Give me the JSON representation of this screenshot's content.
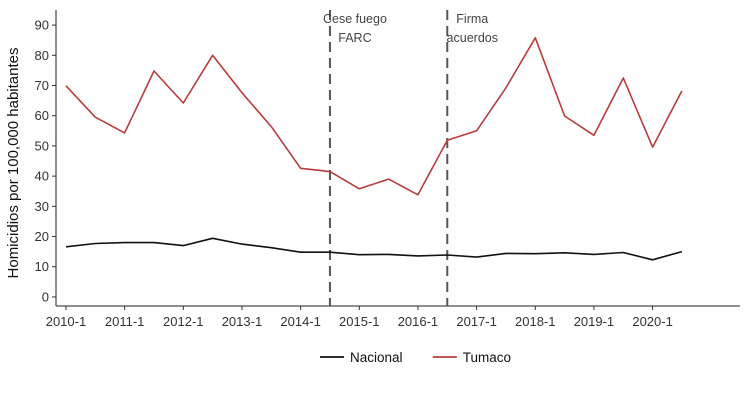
{
  "chart_data": {
    "type": "line",
    "xlabel": "",
    "ylabel": "Homicidios por 100,000 habitantes",
    "ylim": [
      -3,
      95
    ],
    "yticks": [
      0,
      10,
      20,
      30,
      40,
      50,
      60,
      70,
      80,
      90
    ],
    "xlim": [
      2009.83,
      2021.49
    ],
    "x": [
      2010.0,
      2010.5,
      2011.0,
      2011.5,
      2012.0,
      2012.5,
      2013.0,
      2013.5,
      2014.0,
      2014.5,
      2015.0,
      2015.5,
      2016.0,
      2016.5,
      2017.0,
      2017.5,
      2018.0,
      2018.5,
      2019.0,
      2019.5,
      2020.0,
      2020.5
    ],
    "xticks": [
      {
        "x": 2010.0,
        "label": "2010-1"
      },
      {
        "x": 2011.0,
        "label": "2011-1"
      },
      {
        "x": 2012.0,
        "label": "2012-1"
      },
      {
        "x": 2013.0,
        "label": "2013-1"
      },
      {
        "x": 2014.0,
        "label": "2014-1"
      },
      {
        "x": 2015.0,
        "label": "2015-1"
      },
      {
        "x": 2016.0,
        "label": "2016-1"
      },
      {
        "x": 2017.0,
        "label": "2017-1"
      },
      {
        "x": 2018.0,
        "label": "2018-1"
      },
      {
        "x": 2019.0,
        "label": "2019-1"
      },
      {
        "x": 2020.0,
        "label": "2020-1"
      }
    ],
    "series": [
      {
        "name": "Nacional",
        "color": "#111111",
        "values": [
          16.6,
          17.7,
          18.0,
          18.0,
          17.0,
          19.4,
          17.5,
          16.3,
          14.8,
          14.8,
          14.0,
          14.1,
          13.6,
          13.9,
          13.2,
          14.4,
          14.3,
          14.6,
          14.1,
          14.7,
          12.3,
          15.0
        ]
      },
      {
        "name": "Tumaco",
        "color": "#b83c3c",
        "values": [
          69.9,
          59.5,
          54.3,
          74.8,
          64.2,
          80.0,
          67.6,
          56.4,
          42.6,
          41.5,
          35.8,
          39.0,
          33.8,
          51.9,
          55.0,
          69.2,
          85.8,
          59.9,
          53.5,
          72.5,
          49.6,
          68.2
        ]
      }
    ],
    "events": [
      {
        "x": 2014.5,
        "label_lines": [
          "Cese fuego",
          "FARC"
        ]
      },
      {
        "x": 2016.5,
        "label_lines": [
          "Firma",
          "acuerdos"
        ]
      }
    ],
    "grid": false,
    "legend_position": "bottom"
  }
}
